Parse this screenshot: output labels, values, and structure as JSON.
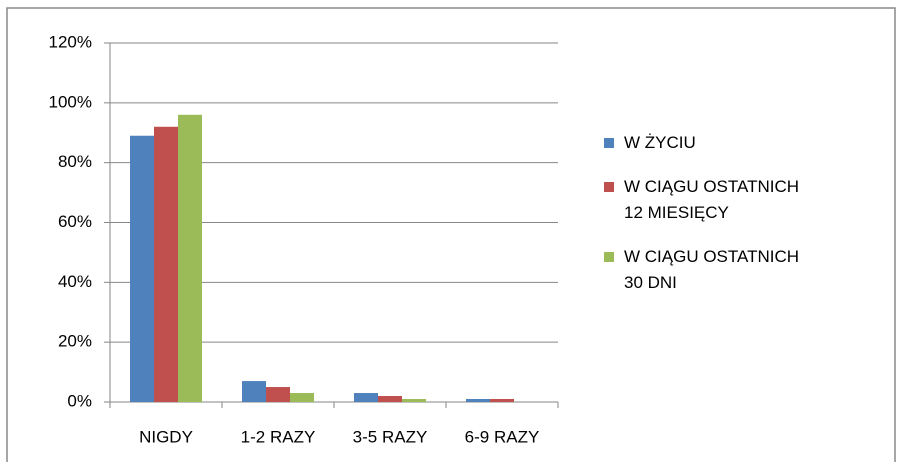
{
  "chart_data": {
    "type": "bar",
    "categories": [
      "NIGDY",
      "1-2 RAZY",
      "3-5 RAZY",
      "6-9 RAZY"
    ],
    "series": [
      {
        "name": "W ŻYCIU",
        "color": "#4f81bd",
        "values": [
          89,
          7,
          3,
          1
        ]
      },
      {
        "name": "W CIĄGU OSTATNICH 12 MIESIĘCY",
        "color": "#c0504d",
        "values": [
          92,
          5,
          2,
          1
        ]
      },
      {
        "name": "W CIĄGU OSTATNICH 30 DNI",
        "color": "#9bbb59",
        "values": [
          96,
          3,
          1,
          0
        ]
      }
    ],
    "ylim": [
      0,
      120
    ],
    "yticks": [
      {
        "value": 0,
        "label": "0%"
      },
      {
        "value": 20,
        "label": "20%"
      },
      {
        "value": 40,
        "label": "40%"
      },
      {
        "value": 60,
        "label": "60%"
      },
      {
        "value": 80,
        "label": "80%"
      },
      {
        "value": 100,
        "label": "100%"
      },
      {
        "value": 120,
        "label": "120%"
      }
    ],
    "grid": true,
    "legend": "right"
  }
}
